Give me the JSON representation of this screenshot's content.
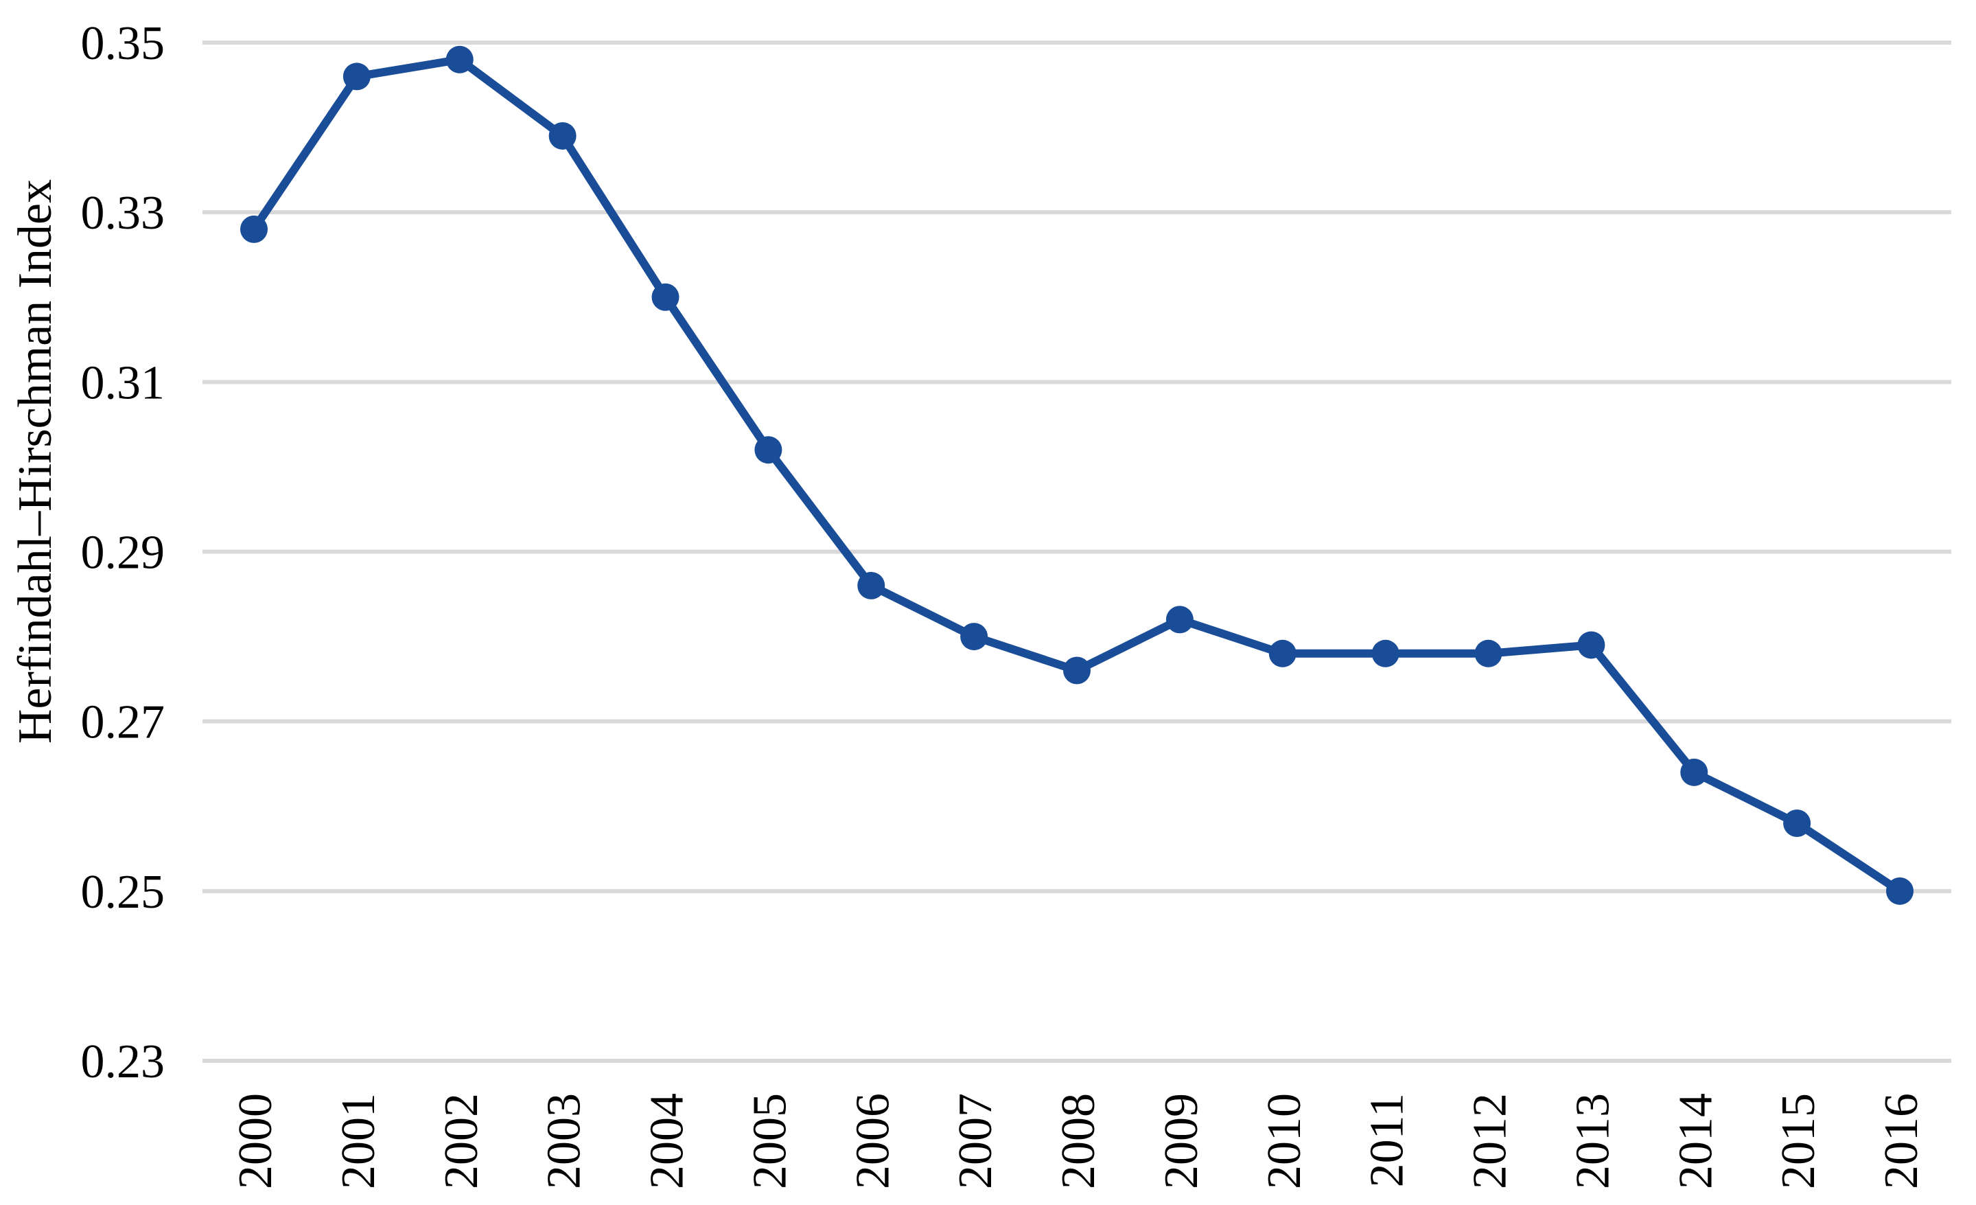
{
  "page": {
    "background": "#ffffff"
  },
  "chart_data": {
    "type": "line",
    "title": "",
    "xlabel": "",
    "ylabel": "Herfindahl–Hirschman Index",
    "categories": [
      "2000",
      "2001",
      "2002",
      "2003",
      "2004",
      "2005",
      "2006",
      "2007",
      "2008",
      "2009",
      "2010",
      "2011",
      "2012",
      "2013",
      "2014",
      "2015",
      "2016"
    ],
    "series": [
      {
        "name": "Herfindahl–Hirschman Index",
        "values": [
          0.328,
          0.346,
          0.348,
          0.339,
          0.32,
          0.302,
          0.286,
          0.28,
          0.276,
          0.282,
          0.278,
          0.278,
          0.278,
          0.279,
          0.264,
          0.258,
          0.25
        ]
      }
    ],
    "ylim": [
      0.23,
      0.35
    ],
    "ytick_labels": [
      "0.35",
      "0.33",
      "0.31",
      "0.29",
      "0.27",
      "0.25",
      "0.23"
    ],
    "x_tick_rotation": -90,
    "grid": "horizontal-only",
    "legend_position": "none",
    "marker_style": "filled-circle",
    "colors": {
      "line": "#1a4d98",
      "marker": "#1a4d98",
      "gridline": "#d9d9d9",
      "text": "#000000"
    }
  }
}
